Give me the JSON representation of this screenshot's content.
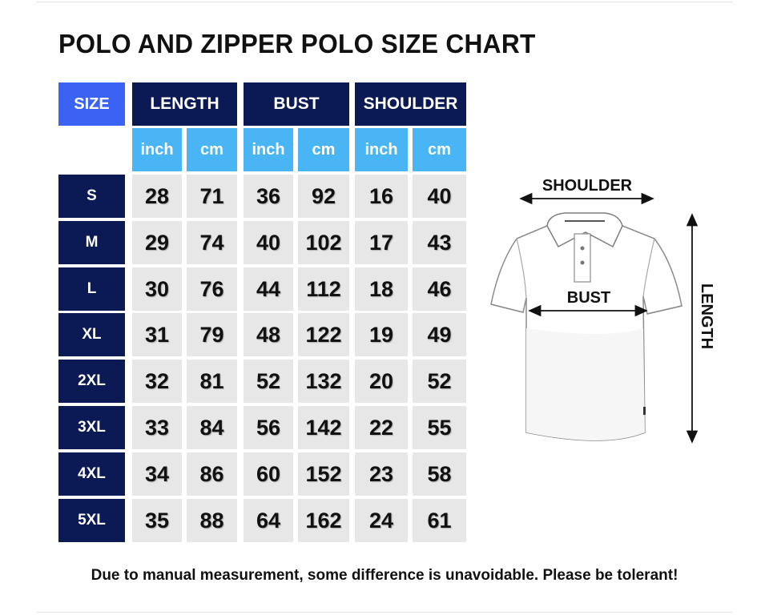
{
  "title": "POLO AND ZIPPER POLO SIZE CHART",
  "table": {
    "size_header": "SIZE",
    "groups": [
      "LENGTH",
      "BUST",
      "SHOULDER"
    ],
    "units": [
      "inch",
      "cm",
      "inch",
      "cm",
      "inch",
      "cm"
    ],
    "rows": [
      {
        "size": "S",
        "values": [
          "28",
          "71",
          "36",
          "92",
          "16",
          "40"
        ]
      },
      {
        "size": "M",
        "values": [
          "29",
          "74",
          "40",
          "102",
          "17",
          "43"
        ]
      },
      {
        "size": "L",
        "values": [
          "30",
          "76",
          "44",
          "112",
          "18",
          "46"
        ]
      },
      {
        "size": "XL",
        "values": [
          "31",
          "79",
          "48",
          "122",
          "19",
          "49"
        ]
      },
      {
        "size": "2XL",
        "values": [
          "32",
          "81",
          "52",
          "132",
          "20",
          "52"
        ]
      },
      {
        "size": "3XL",
        "values": [
          "33",
          "84",
          "56",
          "142",
          "22",
          "55"
        ]
      },
      {
        "size": "4XL",
        "values": [
          "34",
          "86",
          "60",
          "152",
          "23",
          "58"
        ]
      },
      {
        "size": "5XL",
        "values": [
          "35",
          "88",
          "64",
          "162",
          "24",
          "61"
        ]
      }
    ],
    "colors": {
      "size_header": "#3b63f3",
      "group_header": "#0b1a55",
      "unit_header": "#49b5f5",
      "value_cell": "#e7e7e7"
    }
  },
  "diagram": {
    "shoulder_label": "SHOULDER",
    "bust_label": "BUST",
    "length_label": "LENGTH"
  },
  "footer_note": "Due to manual measurement, some difference is unavoidable. Please be tolerant!"
}
